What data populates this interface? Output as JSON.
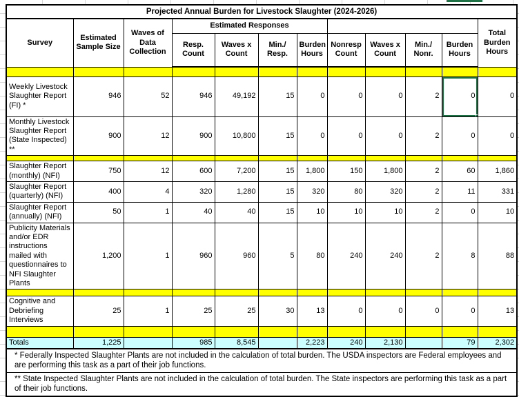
{
  "title": "Projected Annual Burden for Livestock Slaughter (2024-2026)",
  "colors": {
    "separator_row": "#ffff00",
    "totals_row": "#ccffff",
    "title_row": "#ebf0de",
    "selection_green": "#1f7245"
  },
  "table": {
    "header": {
      "survey": "Survey",
      "sample_size": "Estimated Sample Size",
      "waves": "Waves of Data Collection",
      "est_responses_group": "Estimated Responses",
      "nonresponse_group": "",
      "total": "Total Burden Hours",
      "sub": [
        "Resp. Count",
        "Waves x Count",
        "Min./ Resp.",
        "Burden Hours",
        "Nonresp Count",
        "Waves x Count",
        "Min./ Nonr.",
        "Burden Hours"
      ]
    },
    "rows": [
      {
        "type": "sep"
      },
      {
        "type": "data",
        "survey": "Weekly Livestock Slaughter Report (FI) *",
        "values": [
          "946",
          "52",
          "946",
          "49,192",
          "15",
          "0",
          "0",
          "0",
          "2",
          "0",
          "0"
        ]
      },
      {
        "type": "data",
        "survey": "Monthly Livestock Slaughter Report (State Inspected) **",
        "values": [
          "900",
          "12",
          "900",
          "10,800",
          "15",
          "0",
          "0",
          "0",
          "2",
          "0",
          "0"
        ]
      },
      {
        "type": "sep"
      },
      {
        "type": "data",
        "survey": "Slaughter Report (monthly) (NFI)",
        "values": [
          "750",
          "12",
          "600",
          "7,200",
          "15",
          "1,800",
          "150",
          "1,800",
          "2",
          "60",
          "1,860"
        ]
      },
      {
        "type": "data",
        "survey": "Slaughter Report (quarterly) (NFI)",
        "values": [
          "400",
          "4",
          "320",
          "1,280",
          "15",
          "320",
          "80",
          "320",
          "2",
          "11",
          "331"
        ]
      },
      {
        "type": "data",
        "survey": "Slaughter Report (annually) (NFI)",
        "values": [
          "50",
          "1",
          "40",
          "40",
          "15",
          "10",
          "10",
          "10",
          "2",
          "0",
          "10"
        ]
      },
      {
        "type": "data",
        "survey": "Publicity Materials and/or EDR instructions mailed with questionnaires to NFI Slaughter Plants",
        "values": [
          "1,200",
          "1",
          "960",
          "960",
          "5",
          "80",
          "240",
          "240",
          "2",
          "8",
          "88"
        ]
      },
      {
        "type": "sep"
      },
      {
        "type": "data",
        "survey": "Cognitive and Debriefing Interviews",
        "values": [
          "25",
          "1",
          "25",
          "25",
          "30",
          "13",
          "0",
          "0",
          "0",
          "0",
          "13"
        ]
      },
      {
        "type": "sep"
      },
      {
        "type": "totals",
        "survey": "Totals",
        "values": [
          "1,225",
          "",
          "985",
          "8,545",
          "",
          "2,223",
          "240",
          "2,130",
          "",
          "79",
          "2,302"
        ]
      }
    ]
  },
  "selection": {
    "row_index": 1,
    "value_index": 9,
    "description": "Burden Hours (nonresponse) cell of Weekly Livestock Slaughter Report row"
  },
  "footnotes": [
    "* Federally Inspected Slaughter Plants are not included in the calculation of total burden.  The USDA inspectors are Federal employees and are performing this task as a part of their job functions.",
    "** State Inspected Slaughter Plants are not included in the calculation of total burden.  The State inspectors are performing this task as a part of their job functions."
  ]
}
